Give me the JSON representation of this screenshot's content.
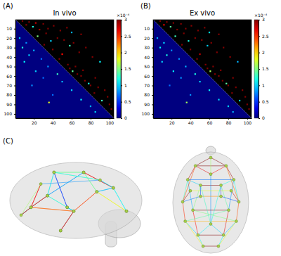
{
  "chart_data": [
    {
      "type": "heatmap",
      "panel": "(A)",
      "title": "In vivo",
      "xlim": [
        0.5,
        104.5
      ],
      "ylim": [
        0.5,
        104.5
      ],
      "xticks": [
        20,
        40,
        60,
        80,
        100
      ],
      "yticks": [
        10,
        20,
        30,
        40,
        50,
        60,
        70,
        80,
        90,
        100
      ],
      "fill_value": 0,
      "cells": [
        [
          2,
          8,
          3
        ],
        [
          3,
          15,
          3
        ],
        [
          4,
          22,
          2.8
        ],
        [
          5,
          30,
          3
        ],
        [
          6,
          12,
          3
        ],
        [
          7,
          41,
          3
        ],
        [
          8,
          19,
          1.2
        ],
        [
          9,
          55,
          3
        ],
        [
          10,
          35,
          3
        ],
        [
          11,
          26,
          2.9
        ],
        [
          12,
          48,
          3
        ],
        [
          14,
          60,
          0.9
        ],
        [
          15,
          33,
          3
        ],
        [
          16,
          70,
          3
        ],
        [
          18,
          24,
          1.5
        ],
        [
          20,
          45,
          3
        ],
        [
          22,
          52,
          3
        ],
        [
          23,
          38,
          1
        ],
        [
          25,
          62,
          3
        ],
        [
          27,
          31,
          3
        ],
        [
          28,
          58,
          1.3
        ],
        [
          30,
          75,
          3
        ],
        [
          32,
          40,
          3
        ],
        [
          35,
          68,
          3
        ],
        [
          37,
          50,
          2.6
        ],
        [
          40,
          82,
          3
        ],
        [
          42,
          47,
          3
        ],
        [
          45,
          90,
          1.1
        ],
        [
          48,
          56,
          3
        ],
        [
          50,
          64,
          3
        ],
        [
          52,
          58,
          3
        ],
        [
          54,
          72,
          3
        ],
        [
          55,
          61,
          1.4
        ],
        [
          58,
          66,
          3
        ],
        [
          60,
          70,
          3
        ],
        [
          62,
          85,
          3
        ],
        [
          65,
          74,
          3
        ],
        [
          68,
          78,
          1.2
        ],
        [
          70,
          80,
          3
        ],
        [
          72,
          88,
          3
        ],
        [
          75,
          95,
          3
        ],
        [
          78,
          84,
          3
        ],
        [
          82,
          98,
          3
        ],
        [
          86,
          92,
          1.3
        ],
        [
          90,
          100,
          3
        ],
        [
          95,
          102,
          3
        ],
        [
          20,
          5,
          1
        ],
        [
          25,
          12,
          0.8
        ],
        [
          30,
          8,
          1.2
        ],
        [
          33,
          20,
          0.9
        ],
        [
          38,
          15,
          1
        ],
        [
          42,
          28,
          0.7
        ],
        [
          45,
          10,
          1.1
        ],
        [
          50,
          35,
          0.8
        ],
        [
          55,
          22,
          1
        ],
        [
          58,
          45,
          1.3
        ],
        [
          62,
          30,
          0.7
        ],
        [
          66,
          50,
          0.9
        ],
        [
          70,
          18,
          0.8
        ],
        [
          75,
          60,
          1
        ],
        [
          80,
          40,
          0.7
        ],
        [
          85,
          70,
          1.1
        ],
        [
          88,
          36,
          1.8
        ],
        [
          92,
          80,
          0.9
        ],
        [
          98,
          85,
          1
        ]
      ],
      "colorbar": {
        "range": [
          0,
          3
        ],
        "ticks": [
          0,
          0.5,
          1,
          1.5,
          2,
          2.5,
          3
        ],
        "label": "×10⁻⁴"
      }
    },
    {
      "type": "heatmap",
      "panel": "(B)",
      "title": "Ex vivo",
      "xlim": [
        0.5,
        104.5
      ],
      "ylim": [
        0.5,
        104.5
      ],
      "xticks": [
        20,
        40,
        60,
        80,
        100
      ],
      "yticks": [
        10,
        20,
        30,
        40,
        50,
        60,
        70,
        80,
        90,
        100
      ],
      "fill_value": 0,
      "cells": [
        [
          2,
          8,
          3
        ],
        [
          3,
          15,
          3
        ],
        [
          4,
          22,
          3
        ],
        [
          5,
          30,
          3
        ],
        [
          6,
          12,
          2.7
        ],
        [
          7,
          41,
          3
        ],
        [
          8,
          19,
          1.4
        ],
        [
          9,
          55,
          3
        ],
        [
          10,
          35,
          3
        ],
        [
          11,
          26,
          3
        ],
        [
          12,
          48,
          3
        ],
        [
          14,
          60,
          1.1
        ],
        [
          15,
          33,
          3
        ],
        [
          16,
          70,
          3
        ],
        [
          18,
          24,
          1.3
        ],
        [
          20,
          45,
          3
        ],
        [
          22,
          52,
          3
        ],
        [
          23,
          38,
          1.2
        ],
        [
          25,
          62,
          3
        ],
        [
          27,
          31,
          3
        ],
        [
          28,
          58,
          1
        ],
        [
          30,
          75,
          3
        ],
        [
          32,
          40,
          3
        ],
        [
          35,
          68,
          3
        ],
        [
          37,
          50,
          2.8
        ],
        [
          40,
          82,
          3
        ],
        [
          42,
          47,
          3
        ],
        [
          45,
          90,
          0.9
        ],
        [
          48,
          56,
          3
        ],
        [
          50,
          64,
          3
        ],
        [
          52,
          58,
          3
        ],
        [
          54,
          72,
          3
        ],
        [
          55,
          61,
          1.6
        ],
        [
          58,
          66,
          3
        ],
        [
          60,
          70,
          3
        ],
        [
          62,
          85,
          3
        ],
        [
          65,
          74,
          3
        ],
        [
          68,
          78,
          1.4
        ],
        [
          70,
          80,
          3
        ],
        [
          72,
          88,
          3
        ],
        [
          75,
          95,
          3
        ],
        [
          78,
          84,
          3
        ],
        [
          82,
          98,
          3
        ],
        [
          86,
          92,
          1.1
        ],
        [
          90,
          100,
          3
        ],
        [
          95,
          102,
          3
        ],
        [
          20,
          5,
          0.9
        ],
        [
          25,
          12,
          1
        ],
        [
          30,
          8,
          1.1
        ],
        [
          33,
          20,
          0.8
        ],
        [
          38,
          15,
          1.2
        ],
        [
          42,
          28,
          0.8
        ],
        [
          45,
          10,
          1
        ],
        [
          50,
          35,
          0.9
        ],
        [
          55,
          22,
          1.1
        ],
        [
          58,
          45,
          1.2
        ],
        [
          62,
          30,
          0.8
        ],
        [
          66,
          50,
          1
        ],
        [
          70,
          18,
          0.7
        ],
        [
          75,
          60,
          1.1
        ],
        [
          80,
          40,
          0.8
        ],
        [
          85,
          70,
          1
        ],
        [
          88,
          36,
          1.6
        ],
        [
          92,
          80,
          1
        ],
        [
          98,
          85,
          0.9
        ]
      ],
      "colorbar": {
        "range": [
          0,
          3
        ],
        "ticks": [
          0,
          0.5,
          1,
          1.5,
          2,
          2.5,
          3
        ],
        "label": "×10⁻⁴"
      }
    },
    {
      "type": "network",
      "panel": "(C)",
      "color": "#a8d04a",
      "nodes": [
        [
          -30,
          55,
          10
        ],
        [
          30,
          55,
          10
        ],
        [
          -45,
          30,
          25
        ],
        [
          45,
          30,
          25
        ],
        [
          -20,
          20,
          55
        ],
        [
          20,
          20,
          55
        ],
        [
          -55,
          -10,
          5
        ],
        [
          55,
          -10,
          5
        ],
        [
          -35,
          -25,
          55
        ],
        [
          35,
          -25,
          55
        ],
        [
          -50,
          -45,
          30
        ],
        [
          50,
          -45,
          30
        ],
        [
          -25,
          -70,
          35
        ],
        [
          25,
          -70,
          35
        ],
        [
          -15,
          -90,
          5
        ],
        [
          15,
          -90,
          5
        ],
        [
          -20,
          0,
          10
        ],
        [
          20,
          0,
          10
        ],
        [
          0,
          40,
          40
        ],
        [
          0,
          -50,
          45
        ],
        [
          -40,
          10,
          -20
        ],
        [
          40,
          10,
          -20
        ],
        [
          0,
          70,
          0
        ]
      ],
      "edges": [
        [
          0,
          1,
          3
        ],
        [
          0,
          2,
          2.8
        ],
        [
          1,
          3,
          2.9
        ],
        [
          2,
          4,
          1
        ],
        [
          3,
          5,
          1.2
        ],
        [
          4,
          5,
          3
        ],
        [
          0,
          18,
          2.7
        ],
        [
          1,
          18,
          2.6
        ],
        [
          18,
          19,
          0.8
        ],
        [
          4,
          8,
          1.5
        ],
        [
          5,
          9,
          1.4
        ],
        [
          8,
          9,
          3
        ],
        [
          6,
          10,
          2.5
        ],
        [
          7,
          11,
          2.4
        ],
        [
          10,
          12,
          1
        ],
        [
          11,
          13,
          0.9
        ],
        [
          12,
          13,
          3
        ],
        [
          14,
          15,
          3
        ],
        [
          12,
          14,
          1.2
        ],
        [
          13,
          15,
          1.1
        ],
        [
          16,
          17,
          2.2
        ],
        [
          6,
          16,
          0.7
        ],
        [
          7,
          17,
          0.6
        ],
        [
          20,
          21,
          1.8
        ],
        [
          6,
          20,
          2.9
        ],
        [
          7,
          21,
          2.8
        ],
        [
          2,
          6,
          1.3
        ],
        [
          3,
          7,
          1.2
        ],
        [
          8,
          12,
          2.6
        ],
        [
          9,
          13,
          2.7
        ],
        [
          19,
          12,
          1.1
        ],
        [
          19,
          13,
          1
        ],
        [
          0,
          22,
          3
        ],
        [
          1,
          22,
          3
        ],
        [
          22,
          18,
          1.6
        ],
        [
          2,
          8,
          0.9
        ],
        [
          3,
          9,
          0.8
        ],
        [
          10,
          11,
          2.1
        ],
        [
          4,
          19,
          1.3
        ],
        [
          5,
          19,
          1.2
        ],
        [
          16,
          4,
          0.6
        ],
        [
          17,
          5,
          0.5
        ],
        [
          14,
          10,
          1.9
        ],
        [
          15,
          11,
          1.8
        ],
        [
          0,
          6,
          2.4
        ],
        [
          1,
          7,
          2.3
        ],
        [
          2,
          3,
          0.7
        ],
        [
          8,
          11,
          1.5
        ],
        [
          9,
          10,
          1.4
        ]
      ]
    }
  ]
}
